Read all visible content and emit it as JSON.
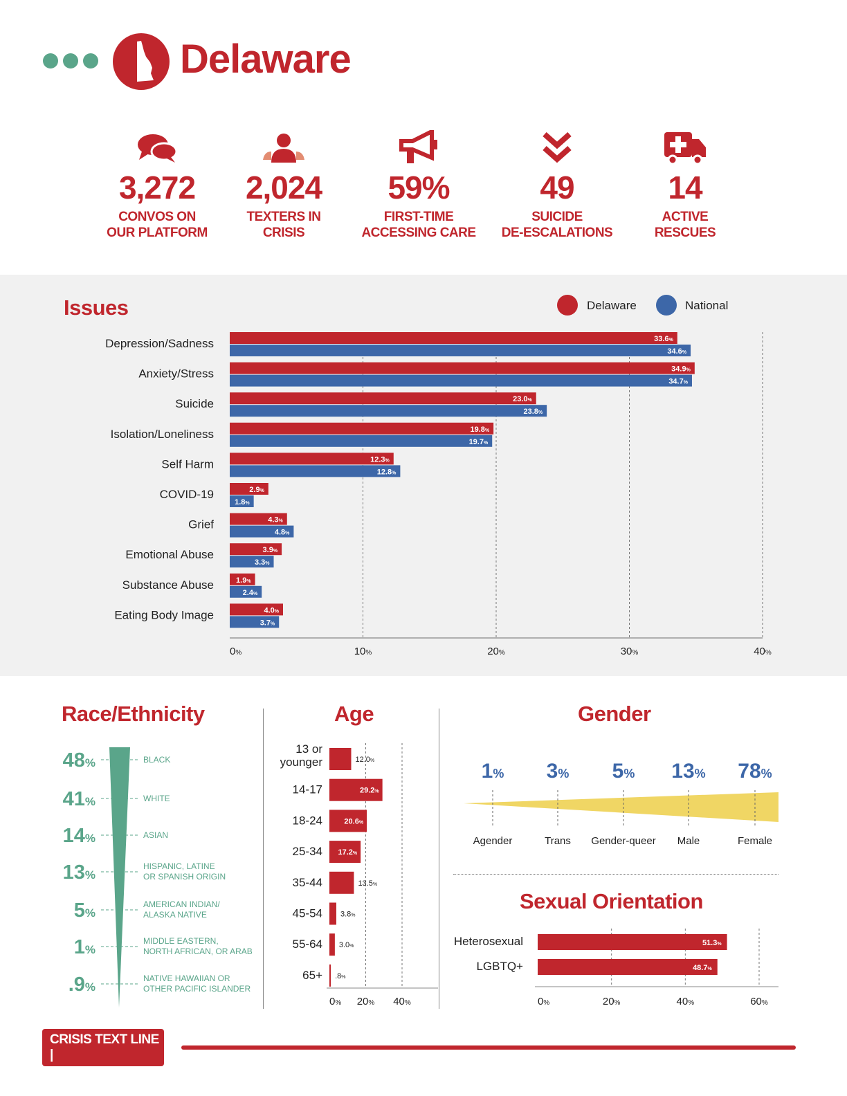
{
  "header": {
    "state": "Delaware"
  },
  "stats": [
    {
      "icon": "chat-bubbles-icon",
      "value": "3,272",
      "label1": "CONVOS ON",
      "label2": "OUR PLATFORM"
    },
    {
      "icon": "people-icon",
      "value": "2,024",
      "label1": "TEXTERS IN",
      "label2": "CRISIS"
    },
    {
      "icon": "megaphone-icon",
      "value": "59%",
      "label1": "FIRST-TIME",
      "label2": "ACCESSING CARE"
    },
    {
      "icon": "double-chevron-down-icon",
      "value": "49",
      "label1": "SUICIDE",
      "label2": "DE-ESCALATIONS"
    },
    {
      "icon": "ambulance-icon",
      "value": "14",
      "label1": "ACTIVE",
      "label2": "RESCUES"
    }
  ],
  "colors": {
    "red": "#c0262d",
    "blue": "#3d67a8",
    "green": "#5aa58a",
    "yellow": "#f0d664"
  },
  "issues": {
    "title": "Issues",
    "legend": [
      "Delaware",
      "National"
    ]
  },
  "chart_data": [
    {
      "type": "bar",
      "orientation": "horizontal",
      "title": "Issues",
      "categories": [
        "Depression/Sadness",
        "Anxiety/Stress",
        "Suicide",
        "Isolation/Loneliness",
        "Self Harm",
        "COVID-19",
        "Grief",
        "Emotional Abuse",
        "Substance Abuse",
        "Eating Body Image"
      ],
      "series": [
        {
          "name": "Delaware",
          "values": [
            33.6,
            34.9,
            23.0,
            19.8,
            12.3,
            2.9,
            4.3,
            3.9,
            1.9,
            4.0
          ],
          "labels": [
            "33.6",
            "34.9",
            "23.0",
            "19.8",
            "12.3",
            "2.9",
            "4.3",
            "3.9",
            "1.9",
            "4.0"
          ]
        },
        {
          "name": "National",
          "values": [
            34.6,
            34.7,
            23.8,
            19.7,
            12.8,
            1.8,
            4.8,
            3.3,
            2.4,
            3.7
          ],
          "labels": [
            "34.6",
            "34.7",
            "23.8",
            "19.7",
            "12.8",
            "1.8",
            "4.8",
            "3.3",
            "2.4",
            "3.7"
          ]
        }
      ],
      "xlim": [
        0,
        40
      ],
      "ticks": [
        "0",
        "10",
        "20",
        "30",
        "40"
      ],
      "legend": "top-right",
      "grid": true
    },
    {
      "type": "bar",
      "title": "Race/Ethnicity",
      "categories": [
        "BLACK",
        "WHITE",
        "ASIAN",
        "HISPANIC, LATINE|OR SPANISH ORIGIN",
        "AMERICAN INDIAN/|ALASKA NATIVE",
        "MIDDLE EASTERN,|NORTH AFRICAN, OR ARAB",
        "NATIVE HAWAIIAN OR|OTHER PACIFIC ISLANDER"
      ],
      "values": [
        48,
        41,
        14,
        13,
        5,
        1,
        0.9
      ],
      "labels": [
        "48",
        "41",
        "14",
        "13",
        "5",
        "1",
        ".9"
      ]
    },
    {
      "type": "bar",
      "orientation": "horizontal",
      "title": "Age",
      "categories": [
        "13 or|younger",
        "14-17",
        "18-24",
        "25-34",
        "35-44",
        "45-54",
        "55-64",
        "65+"
      ],
      "values": [
        12.0,
        29.2,
        20.6,
        17.2,
        13.5,
        3.8,
        3.0,
        0.8
      ],
      "labels": [
        "12.0",
        "29.2",
        "20.6",
        "17.2",
        "13.5",
        "3.8",
        "3.0",
        ".8"
      ],
      "xlim": [
        0,
        40
      ],
      "ticks": [
        "0",
        "20",
        "40"
      ]
    },
    {
      "type": "area",
      "title": "Gender",
      "categories": [
        "Agender",
        "Trans",
        "Gender-queer",
        "Male",
        "Female"
      ],
      "values": [
        1,
        3,
        5,
        13,
        78
      ],
      "labels": [
        "1",
        "3",
        "5",
        "13",
        "78"
      ]
    },
    {
      "type": "bar",
      "orientation": "horizontal",
      "title": "Sexual Orientation",
      "categories": [
        "Heterosexual",
        "LGBTQ+"
      ],
      "values": [
        51.3,
        48.7
      ],
      "labels": [
        "51.3",
        "48.7"
      ],
      "xlim": [
        0,
        60
      ],
      "ticks": [
        "0",
        "20",
        "40",
        "60"
      ]
    }
  ],
  "footer": {
    "logo": "CRISIS TEXT LINE |"
  }
}
